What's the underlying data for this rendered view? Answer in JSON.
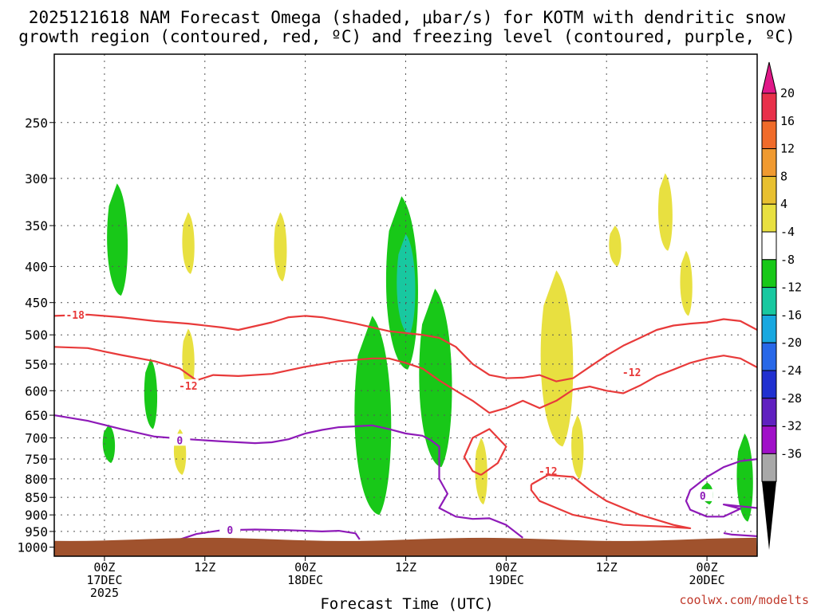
{
  "chart_data": {
    "type": "cross-section",
    "title_line1": "2025121618 NAM Forecast Omega (shaded, μbar/s) for KOTM with dendritic snow",
    "title_line2": "growth region (contoured, red, ºC) and freezing level (contoured, purple, ºC)",
    "xlabel": "Forecast Time (UTC)",
    "credit": "coolwx.com/modelts",
    "x_ticks": [
      {
        "hour": 6,
        "lines": [
          "00Z",
          "17DEC",
          "2025"
        ]
      },
      {
        "hour": 18,
        "lines": [
          "12Z",
          "",
          ""
        ]
      },
      {
        "hour": 30,
        "lines": [
          "00Z",
          "18DEC",
          ""
        ]
      },
      {
        "hour": 42,
        "lines": [
          "12Z",
          "",
          ""
        ]
      },
      {
        "hour": 54,
        "lines": [
          "00Z",
          "19DEC",
          ""
        ]
      },
      {
        "hour": 66,
        "lines": [
          "12Z",
          "",
          ""
        ]
      },
      {
        "hour": 78,
        "lines": [
          "00Z",
          "20DEC",
          ""
        ]
      }
    ],
    "xlim_hours": [
      0,
      84
    ],
    "y_ticks_hpa": [
      250,
      300,
      350,
      400,
      450,
      500,
      550,
      600,
      650,
      700,
      750,
      800,
      850,
      900,
      950,
      1000
    ],
    "ylim_hpa": [
      200,
      1030
    ],
    "grid": true,
    "colorbar": {
      "labels": [
        "20",
        "16",
        "12",
        "8",
        "4",
        "-4",
        "-8",
        "-12",
        "-16",
        "-20",
        "-24",
        "-28",
        "-32",
        "-36"
      ],
      "colors": [
        "#e8304a",
        "#f06b2a",
        "#f09a30",
        "#e8c030",
        "#e8e040",
        "#ffffff",
        "#18c818",
        "#18c8a0",
        "#18a8e0",
        "#2868e8",
        "#2030d0",
        "#6020c0",
        "#a010c8",
        "#a8a8a8"
      ],
      "top_arrow_color": "#e01888",
      "bottom_arrow_color": "#000000"
    },
    "omega_shading": [
      {
        "value": -8,
        "color": "#18c818",
        "hour": 7.5,
        "top_hpa": 305,
        "bottom_hpa": 440
      },
      {
        "value": 4,
        "color": "#e8e040",
        "hour": 16,
        "top_hpa": 335,
        "bottom_hpa": 410
      },
      {
        "value": 4,
        "color": "#e8e040",
        "hour": 27,
        "top_hpa": 335,
        "bottom_hpa": 420
      },
      {
        "value": -8,
        "color": "#18c818",
        "hour": 11.5,
        "top_hpa": 540,
        "bottom_hpa": 680
      },
      {
        "value": 4,
        "color": "#e8e040",
        "hour": 16,
        "top_hpa": 490,
        "bottom_hpa": 600
      },
      {
        "value": -8,
        "color": "#18c818",
        "hour": 6.5,
        "top_hpa": 670,
        "bottom_hpa": 760
      },
      {
        "value": 4,
        "color": "#e8e040",
        "hour": 15,
        "top_hpa": 680,
        "bottom_hpa": 790
      },
      {
        "value": -8,
        "color": "#18c818",
        "hour": 38,
        "top_hpa": 470,
        "bottom_hpa": 900
      },
      {
        "value": -8,
        "color": "#18c818",
        "hour": 41.5,
        "top_hpa": 318,
        "bottom_hpa": 560
      },
      {
        "value": -12,
        "color": "#18c8a0",
        "hour": 42,
        "top_hpa": 360,
        "bottom_hpa": 500
      },
      {
        "value": -8,
        "color": "#18c818",
        "hour": 45.5,
        "top_hpa": 430,
        "bottom_hpa": 770
      },
      {
        "value": 4,
        "color": "#e8e040",
        "hour": 51,
        "top_hpa": 700,
        "bottom_hpa": 870
      },
      {
        "value": 4,
        "color": "#e8e040",
        "hour": 60,
        "top_hpa": 405,
        "bottom_hpa": 720
      },
      {
        "value": 4,
        "color": "#e8e040",
        "hour": 62.5,
        "top_hpa": 650,
        "bottom_hpa": 800
      },
      {
        "value": 4,
        "color": "#e8e040",
        "hour": 67,
        "top_hpa": 350,
        "bottom_hpa": 400
      },
      {
        "value": 4,
        "color": "#e8e040",
        "hour": 73,
        "top_hpa": 295,
        "bottom_hpa": 380
      },
      {
        "value": 4,
        "color": "#e8e040",
        "hour": 75.5,
        "top_hpa": 380,
        "bottom_hpa": 470
      },
      {
        "value": -8,
        "color": "#18c818",
        "hour": 78,
        "top_hpa": 810,
        "bottom_hpa": 870
      },
      {
        "value": -8,
        "color": "#18c818",
        "hour": 82.5,
        "top_hpa": 690,
        "bottom_hpa": 920
      }
    ],
    "red_contours": [
      {
        "label": "-18",
        "label_hour": 2.5,
        "label_hpa": 468,
        "points": [
          [
            0,
            470
          ],
          [
            4,
            468
          ],
          [
            8,
            472
          ],
          [
            12,
            478
          ],
          [
            16,
            482
          ],
          [
            20,
            488
          ],
          [
            22,
            492
          ],
          [
            26,
            480
          ],
          [
            28,
            472
          ],
          [
            30,
            470
          ],
          [
            32,
            472
          ],
          [
            36,
            482
          ],
          [
            40,
            494
          ],
          [
            44,
            500
          ],
          [
            46,
            505
          ],
          [
            48,
            520
          ],
          [
            50,
            550
          ],
          [
            52,
            570
          ],
          [
            54,
            576
          ],
          [
            56,
            575
          ],
          [
            58,
            570
          ],
          [
            60,
            582
          ],
          [
            62,
            576
          ],
          [
            64,
            555
          ],
          [
            66,
            535
          ],
          [
            68,
            518
          ],
          [
            70,
            505
          ],
          [
            72,
            492
          ],
          [
            74,
            485
          ],
          [
            76,
            482
          ],
          [
            78,
            480
          ],
          [
            80,
            475
          ],
          [
            82,
            478
          ],
          [
            84,
            492
          ]
        ]
      },
      {
        "label": "-12",
        "label_hour": 16,
        "label_hpa": 590,
        "points": [
          [
            0,
            520
          ],
          [
            4,
            522
          ],
          [
            8,
            534
          ],
          [
            12,
            545
          ],
          [
            15,
            558
          ],
          [
            17,
            580
          ],
          [
            19,
            570
          ],
          [
            22,
            572
          ],
          [
            26,
            568
          ],
          [
            30,
            555
          ],
          [
            34,
            545
          ],
          [
            38,
            540
          ],
          [
            40,
            540
          ],
          [
            42,
            548
          ],
          [
            44,
            558
          ],
          [
            46,
            580
          ],
          [
            48,
            600
          ],
          [
            50,
            620
          ],
          [
            52,
            645
          ],
          [
            54,
            635
          ],
          [
            56,
            620
          ],
          [
            58,
            635
          ],
          [
            60,
            620
          ],
          [
            62,
            598
          ],
          [
            64,
            592
          ],
          [
            66,
            600
          ],
          [
            68,
            605
          ],
          [
            70,
            590
          ],
          [
            72,
            572
          ],
          [
            74,
            560
          ],
          [
            76,
            548
          ],
          [
            78,
            540
          ],
          [
            80,
            535
          ],
          [
            82,
            540
          ],
          [
            84,
            556
          ]
        ]
      },
      {
        "label": "-12",
        "label_hour": 59,
        "label_hpa": 780,
        "points": [
          [
            51,
            790
          ],
          [
            53,
            760
          ],
          [
            54,
            720
          ],
          [
            52,
            680
          ],
          [
            50,
            700
          ],
          [
            49,
            745
          ],
          [
            50,
            780
          ],
          [
            51,
            790
          ]
        ]
      },
      {
        "label": "-12",
        "label_hour": 69,
        "label_hpa": 565,
        "points": [
          [
            57,
            815
          ],
          [
            59,
            790
          ],
          [
            62,
            795
          ],
          [
            64,
            830
          ],
          [
            66,
            860
          ],
          [
            70,
            900
          ],
          [
            74,
            930
          ],
          [
            76,
            940
          ],
          [
            73,
            935
          ],
          [
            68,
            930
          ],
          [
            62,
            900
          ],
          [
            58,
            860
          ],
          [
            57,
            830
          ],
          [
            57,
            815
          ]
        ]
      }
    ],
    "purple_contours": [
      {
        "label": "0",
        "label_hour": 15,
        "label_hpa": 705,
        "points": [
          [
            0,
            650
          ],
          [
            4,
            662
          ],
          [
            8,
            680
          ],
          [
            12,
            697
          ],
          [
            16,
            703
          ],
          [
            20,
            708
          ],
          [
            24,
            712
          ],
          [
            26,
            710
          ],
          [
            28,
            703
          ],
          [
            30,
            690
          ],
          [
            32,
            682
          ],
          [
            34,
            676
          ],
          [
            36,
            674
          ],
          [
            38,
            672
          ],
          [
            40,
            680
          ],
          [
            42,
            690
          ],
          [
            44,
            695
          ],
          [
            45,
            705
          ],
          [
            46,
            720
          ],
          [
            46,
            800
          ],
          [
            47,
            840
          ],
          [
            46,
            880
          ],
          [
            48,
            905
          ],
          [
            50,
            912
          ],
          [
            52,
            910
          ],
          [
            54,
            930
          ],
          [
            56,
            970
          ]
        ]
      },
      {
        "label": "0",
        "label_hour": 21,
        "label_hpa": 945,
        "points": [
          [
            15,
            975
          ],
          [
            17,
            958
          ],
          [
            20,
            946
          ],
          [
            24,
            944
          ],
          [
            28,
            946
          ],
          [
            32,
            950
          ],
          [
            34,
            948
          ],
          [
            36,
            956
          ],
          [
            36.5,
            975
          ]
        ]
      },
      {
        "label": "0",
        "label_hour": 77.5,
        "label_hpa": 845,
        "points": [
          [
            84,
            750
          ],
          [
            82,
            755
          ],
          [
            80,
            770
          ],
          [
            78,
            795
          ],
          [
            76,
            830
          ],
          [
            75.5,
            860
          ],
          [
            76,
            885
          ],
          [
            78,
            905
          ],
          [
            80,
            905
          ],
          [
            82,
            882
          ],
          [
            80,
            870
          ],
          [
            82,
            875
          ],
          [
            84,
            880
          ]
        ]
      },
      {
        "label": "",
        "label_hour": 0,
        "label_hpa": 0,
        "points": [
          [
            84,
            965
          ],
          [
            81,
            960
          ],
          [
            80,
            955
          ]
        ]
      }
    ],
    "terrain": {
      "color": "#a0522d",
      "top_hpa": 975
    }
  }
}
